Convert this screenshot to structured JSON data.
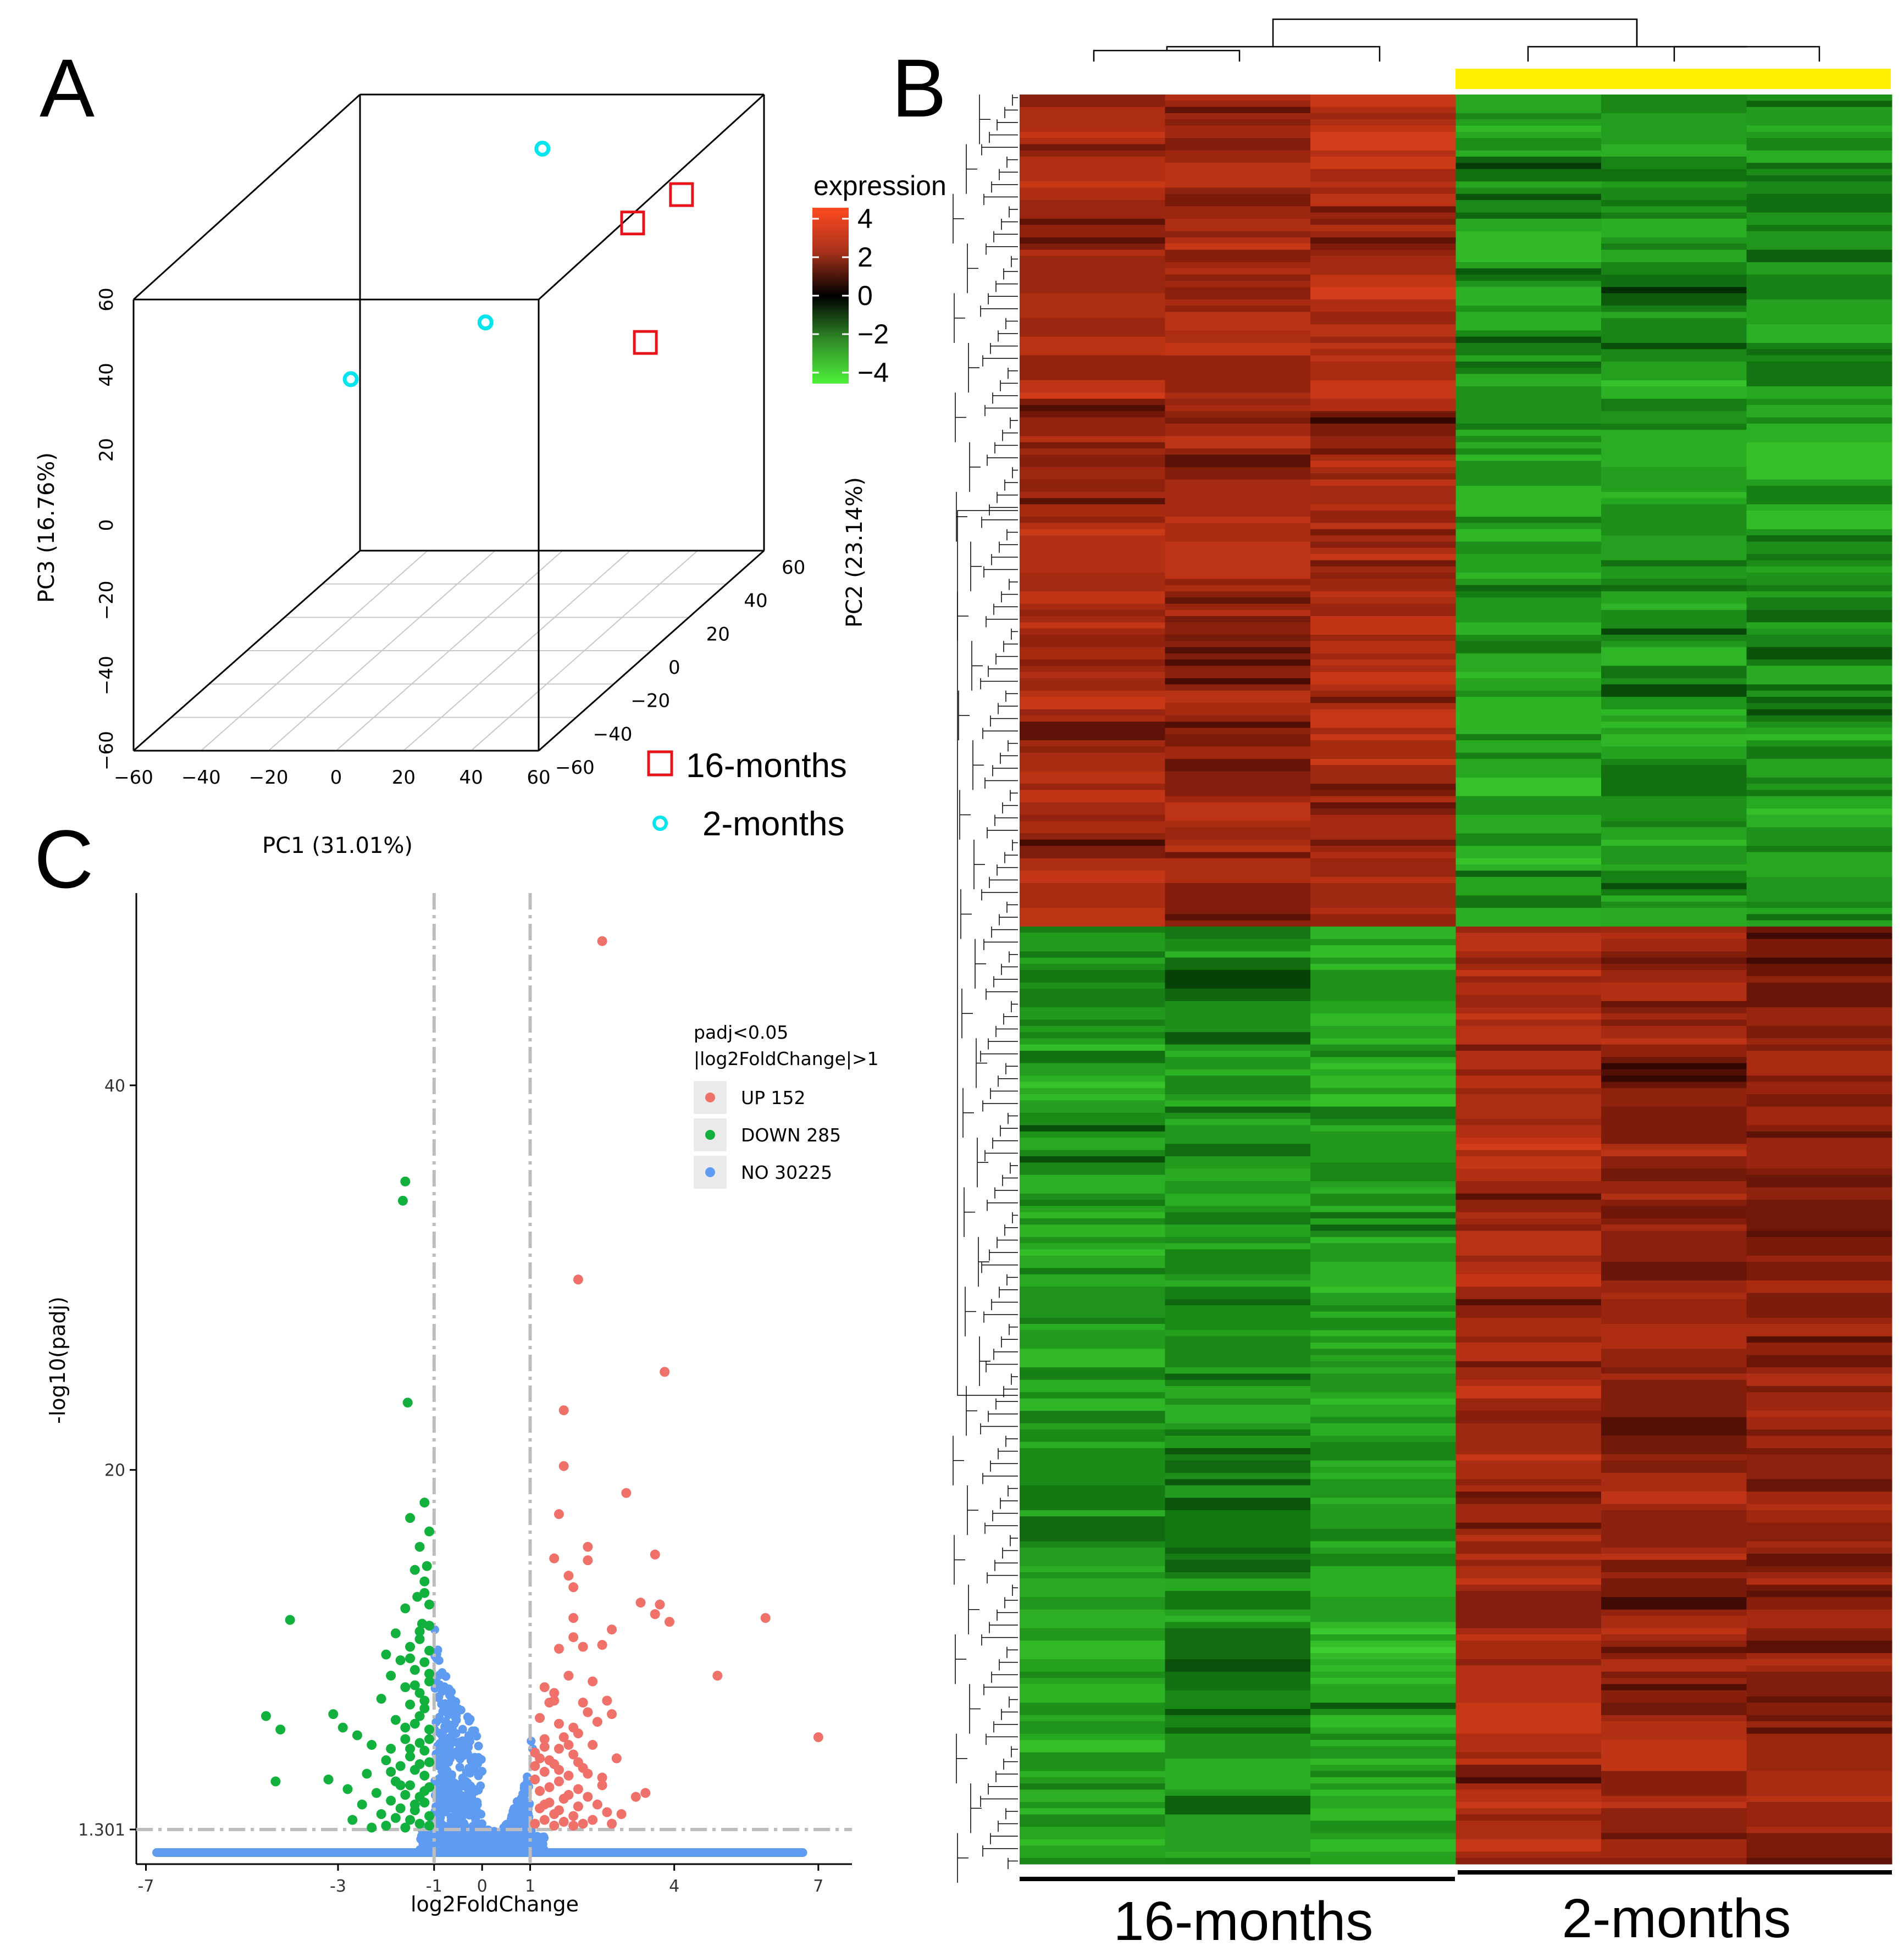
{
  "panels": {
    "a": "A",
    "b": "B",
    "c": "C"
  },
  "chart_data": [
    {
      "type": "scatter",
      "subtype": "3d-pca",
      "xlabel": "PC1 (31.01%)",
      "ylabel": "PC2 (23.14%)",
      "zlabel": "PC3 (16.76%)",
      "x_ticks": [
        "−60",
        "−40",
        "−20",
        "0",
        "20",
        "40",
        "60"
      ],
      "y_ticks": [
        "−60",
        "−40",
        "−20",
        "0",
        "20",
        "40",
        "60"
      ],
      "z_ticks": [
        "−60",
        "−40",
        "−20",
        "0",
        "20",
        "40",
        "60"
      ],
      "xlim": [
        -60,
        60
      ],
      "ylim": [
        -60,
        60
      ],
      "zlim": [
        -60,
        60
      ],
      "series": [
        {
          "name": "16-months",
          "marker": "square",
          "color": "#e8141b",
          "points": [
            [
              42,
              22,
              44
            ],
            [
              52,
              30,
              48
            ],
            [
              48,
              18,
              14
            ]
          ]
        },
        {
          "name": "2-months",
          "marker": "circle",
          "color": "#00e5ee",
          "points": [
            [
              8,
              35,
              58
            ],
            [
              4,
              12,
              22
            ],
            [
              -32,
              5,
              10
            ]
          ]
        }
      ],
      "legend": [
        {
          "label": "16-months",
          "marker": "square",
          "color": "#e8141b"
        },
        {
          "label": "2-months",
          "marker": "circle",
          "color": "#00e5ee"
        }
      ]
    },
    {
      "type": "heatmap",
      "title": "",
      "columns": 6,
      "groups": [
        {
          "label": "16-months",
          "columns": [
            0,
            1,
            2
          ]
        },
        {
          "label": "2-months",
          "columns": [
            3,
            4,
            5
          ]
        }
      ],
      "rows": 285,
      "row_split": 134,
      "scale_title": "expression",
      "scale_ticks": [
        "4",
        "2",
        "0",
        "−2",
        "−4"
      ],
      "scale_range": [
        -4,
        4
      ],
      "colors": {
        "low": "#4eea3a",
        "mid": "#000000",
        "high": "#e8461e"
      },
      "cluster_top_color": "#ffef00",
      "block_means": [
        [
          2.4,
          2.3,
          2.5,
          -2.2,
          -2.0,
          -1.9
        ],
        [
          -2.1,
          -1.8,
          -2.3,
          2.4,
          2.0,
          1.8
        ]
      ]
    },
    {
      "type": "scatter",
      "subtype": "volcano",
      "xlabel": "log2FoldChange",
      "ylabel": "-log10(padj)",
      "x_ticks": [
        "-7",
        "-3",
        "-1",
        "0",
        "1",
        "4",
        "7"
      ],
      "y_ticks": [
        "1.301",
        "20",
        "40"
      ],
      "xlim": [
        -7.2,
        7.7
      ],
      "ylim": [
        -0.5,
        50
      ],
      "thresholds": {
        "x": [
          -1,
          1
        ],
        "y": 1.301
      },
      "legend_title_1": "padj<0.05",
      "legend_title_2": "|log2FoldChange|>1",
      "legend": [
        {
          "label": "UP 152",
          "color": "#f0706a"
        },
        {
          "label": "DOWN 285",
          "color": "#12b03c"
        },
        {
          "label": "NO 30225",
          "color": "#5f9cf1"
        }
      ],
      "series": [
        {
          "name": "UP 152",
          "color": "#f0706a",
          "points": [
            [
              2.5,
              47.5
            ],
            [
              2.0,
              29.9
            ],
            [
              3.8,
              25.1
            ],
            [
              1.7,
              23.1
            ],
            [
              1.7,
              20.2
            ],
            [
              3.0,
              18.8
            ],
            [
              1.6,
              17.7
            ],
            [
              2.2,
              16.0
            ],
            [
              1.5,
              15.4
            ],
            [
              3.6,
              15.6
            ],
            [
              2.2,
              15.3
            ],
            [
              1.8,
              14.5
            ],
            [
              1.9,
              13.9
            ],
            [
              3.3,
              13.1
            ],
            [
              3.7,
              13.0
            ],
            [
              3.6,
              12.5
            ],
            [
              5.9,
              12.3
            ],
            [
              1.9,
              12.3
            ],
            [
              3.9,
              12.1
            ],
            [
              2.7,
              11.7
            ],
            [
              1.9,
              11.3
            ],
            [
              2.5,
              10.9
            ],
            [
              1.6,
              10.7
            ],
            [
              2.1,
              10.8
            ],
            [
              4.9,
              9.3
            ],
            [
              1.8,
              9.3
            ],
            [
              2.3,
              9.0
            ],
            [
              1.3,
              8.7
            ],
            [
              1.5,
              8.4
            ],
            [
              2.6,
              8.0
            ],
            [
              2.1,
              7.9
            ],
            [
              1.4,
              7.9
            ],
            [
              2.7,
              7.3
            ],
            [
              1.2,
              7.1
            ],
            [
              2.4,
              6.9
            ],
            [
              1.6,
              6.8
            ],
            [
              2.0,
              6.3
            ],
            [
              1.3,
              6.0
            ],
            [
              7.0,
              6.1
            ],
            [
              2.3,
              5.7
            ],
            [
              1.6,
              5.5
            ],
            [
              1.9,
              5.2
            ],
            [
              2.8,
              5.0
            ],
            [
              1.2,
              5.0
            ],
            [
              1.5,
              4.7
            ],
            [
              2.1,
              4.5
            ],
            [
              1.3,
              4.3
            ],
            [
              1.8,
              4.1
            ],
            [
              2.5,
              4.0
            ],
            [
              1.1,
              3.9
            ],
            [
              3.4,
              3.2
            ],
            [
              3.2,
              3.0
            ],
            [
              2.2,
              3.0
            ],
            [
              1.7,
              2.9
            ],
            [
              1.4,
              2.7
            ],
            [
              2.0,
              2.5
            ],
            [
              1.2,
              2.4
            ],
            [
              2.6,
              2.2
            ],
            [
              1.5,
              2.1
            ],
            [
              1.9,
              2.0
            ],
            [
              1.3,
              1.8
            ],
            [
              2.3,
              1.8
            ],
            [
              1.7,
              1.7
            ],
            [
              2.1,
              1.6
            ],
            [
              1.1,
              1.6
            ],
            [
              1.5,
              1.5
            ],
            [
              1.9,
              1.5
            ],
            [
              2.7,
              1.6
            ],
            [
              1.4,
              3.5
            ],
            [
              1.6,
              3.8
            ],
            [
              2.2,
              4.2
            ],
            [
              1.8,
              5.7
            ],
            [
              1.1,
              4.6
            ],
            [
              1.2,
              3.3
            ],
            [
              1.8,
              3.1
            ],
            [
              2.4,
              2.6
            ],
            [
              1.6,
              2.3
            ],
            [
              2.0,
              3.4
            ],
            [
              1.3,
              2.6
            ],
            [
              2.9,
              2.1
            ],
            [
              1.4,
              4.9
            ],
            [
              1.7,
              6.1
            ],
            [
              2.2,
              7.4
            ],
            [
              1.5,
              8.0
            ],
            [
              1.9,
              6.6
            ],
            [
              1.3,
              5.6
            ],
            [
              1.1,
              5.3
            ],
            [
              2.5,
              3.6
            ],
            [
              1.6,
              4.4
            ],
            [
              2.0,
              4.8
            ]
          ]
        },
        {
          "name": "DOWN 285",
          "color": "#12b03c",
          "points": [
            [
              -1.6,
              35.0
            ],
            [
              -1.65,
              34.0
            ],
            [
              -1.55,
              23.5
            ],
            [
              -1.2,
              18.3
            ],
            [
              -1.5,
              17.5
            ],
            [
              -1.1,
              16.8
            ],
            [
              -1.3,
              16.0
            ],
            [
              -1.15,
              15.0
            ],
            [
              -1.4,
              14.8
            ],
            [
              -1.2,
              14.2
            ],
            [
              -1.35,
              13.4
            ],
            [
              -1.1,
              13.0
            ],
            [
              -1.6,
              12.8
            ],
            [
              -4.0,
              12.2
            ],
            [
              -1.25,
              12.0
            ],
            [
              -1.8,
              11.5
            ],
            [
              -1.3,
              11.2
            ],
            [
              -1.5,
              10.8
            ],
            [
              -1.1,
              10.6
            ],
            [
              -2.0,
              10.4
            ],
            [
              -1.7,
              10.1
            ],
            [
              -1.2,
              10.0
            ],
            [
              -1.4,
              9.6
            ],
            [
              -1.9,
              9.3
            ],
            [
              -1.1,
              9.0
            ],
            [
              -1.6,
              8.7
            ],
            [
              -1.3,
              8.4
            ],
            [
              -2.1,
              8.1
            ],
            [
              -1.5,
              7.8
            ],
            [
              -1.2,
              7.6
            ],
            [
              -4.5,
              7.2
            ],
            [
              -3.1,
              7.3
            ],
            [
              -1.8,
              7.0
            ],
            [
              -1.4,
              6.8
            ],
            [
              -4.2,
              6.5
            ],
            [
              -2.9,
              6.6
            ],
            [
              -1.1,
              6.5
            ],
            [
              -2.6,
              6.2
            ],
            [
              -1.6,
              6.0
            ],
            [
              -1.3,
              5.8
            ],
            [
              -2.3,
              5.7
            ],
            [
              -1.9,
              5.5
            ],
            [
              -1.2,
              5.4
            ],
            [
              -1.5,
              5.1
            ],
            [
              -2.0,
              4.9
            ],
            [
              -1.1,
              4.8
            ],
            [
              -1.7,
              4.6
            ],
            [
              -1.4,
              4.4
            ],
            [
              -2.4,
              4.2
            ],
            [
              -1.2,
              4.1
            ],
            [
              -4.3,
              3.8
            ],
            [
              -3.2,
              3.9
            ],
            [
              -1.8,
              3.8
            ],
            [
              -1.5,
              3.6
            ],
            [
              -1.1,
              3.5
            ],
            [
              -2.8,
              3.4
            ],
            [
              -2.2,
              3.2
            ],
            [
              -1.6,
              3.1
            ],
            [
              -1.3,
              3.0
            ],
            [
              -1.9,
              2.8
            ],
            [
              -1.2,
              2.7
            ],
            [
              -2.5,
              2.6
            ],
            [
              -1.7,
              2.4
            ],
            [
              -1.4,
              2.3
            ],
            [
              -2.1,
              2.1
            ],
            [
              -1.1,
              2.0
            ],
            [
              -1.8,
              1.9
            ],
            [
              -1.5,
              1.8
            ],
            [
              -2.7,
              1.8
            ],
            [
              -1.3,
              1.6
            ],
            [
              -2.0,
              1.5
            ],
            [
              -1.1,
              1.5
            ],
            [
              -1.6,
              1.4
            ],
            [
              -2.3,
              1.4
            ],
            [
              -1.4,
              2.6
            ],
            [
              -1.2,
              3.3
            ],
            [
              -1.7,
              3.6
            ],
            [
              -1.9,
              4.3
            ],
            [
              -1.3,
              4.7
            ],
            [
              -1.5,
              5.5
            ],
            [
              -1.1,
              6.0
            ],
            [
              -1.6,
              6.6
            ],
            [
              -1.3,
              7.2
            ],
            [
              -1.2,
              8.0
            ],
            [
              -1.4,
              8.8
            ],
            [
              -1.1,
              9.4
            ],
            [
              -1.5,
              10.2
            ],
            [
              -1.3,
              11.6
            ],
            [
              -1.2,
              13.6
            ],
            [
              -1.1,
              11.9
            ]
          ]
        }
      ]
    }
  ]
}
